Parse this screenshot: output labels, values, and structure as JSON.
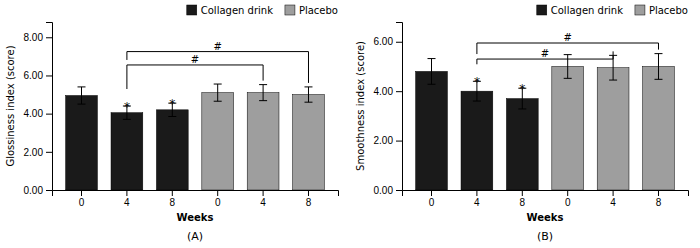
{
  "chart_data": [
    {
      "type": "bar",
      "title": "(A)",
      "x_label": "Weeks",
      "y_label": "Glossiness index (score)",
      "categories": [
        "0",
        "4",
        "8",
        "0",
        "4",
        "8"
      ],
      "series": [
        {
          "name": "Collagen drink",
          "color": "#1a1a1a",
          "values": [
            4.95,
            4.05,
            4.2,
            null,
            null,
            null
          ],
          "errors": [
            0.45,
            0.35,
            0.35,
            null,
            null,
            null
          ]
        },
        {
          "name": "Placebo",
          "color": "#9e9e9e",
          "values": [
            null,
            null,
            null,
            5.1,
            5.1,
            5.0
          ],
          "errors": [
            null,
            null,
            null,
            0.45,
            0.42,
            0.4
          ]
        }
      ],
      "annotations": [
        {
          "text": "*",
          "series": 0,
          "index": 1
        },
        {
          "text": "*",
          "series": 0,
          "index": 2
        }
      ],
      "brackets": [
        {
          "text": "#",
          "from": 1,
          "to": 4,
          "y": 6.55
        },
        {
          "text": "#",
          "from": 1,
          "to": 5,
          "y": 7.25
        }
      ],
      "ylim": [
        0,
        8.8
      ],
      "yticks": [
        {
          "value": 0.0,
          "label": "0.00"
        },
        {
          "value": 2.0,
          "label": "2.00"
        },
        {
          "value": 4.0,
          "label": "4.00"
        },
        {
          "value": 6.0,
          "label": "6.00"
        },
        {
          "value": 8.0,
          "label": "8.00"
        }
      ],
      "legend": "upper right",
      "grid": false
    },
    {
      "type": "bar",
      "title": "(B)",
      "x_label": "Weeks",
      "y_label": "Smoothness index (score)",
      "categories": [
        "0",
        "4",
        "8",
        "0",
        "4",
        "8"
      ],
      "series": [
        {
          "name": "Collagen drink",
          "color": "#1a1a1a",
          "values": [
            4.8,
            4.0,
            3.7,
            null,
            null,
            null
          ],
          "errors": [
            0.52,
            0.4,
            0.42,
            null,
            null,
            null
          ]
        },
        {
          "name": "Placebo",
          "color": "#9e9e9e",
          "values": [
            null,
            null,
            null,
            5.0,
            4.95,
            5.0
          ],
          "errors": [
            null,
            null,
            null,
            0.48,
            0.5,
            0.52
          ]
        }
      ],
      "annotations": [
        {
          "text": "*",
          "series": 0,
          "index": 1
        },
        {
          "text": "*",
          "series": 0,
          "index": 2
        }
      ],
      "brackets": [
        {
          "text": "#",
          "from": 1,
          "to": 4,
          "y": 5.3
        },
        {
          "text": "#",
          "from": 1,
          "to": 5,
          "y": 5.95
        }
      ],
      "ylim": [
        0,
        6.8
      ],
      "yticks": [
        {
          "value": 0.0,
          "label": "0.00"
        },
        {
          "value": 2.0,
          "label": "2.00"
        },
        {
          "value": 4.0,
          "label": "4.00"
        },
        {
          "value": 6.0,
          "label": "6.00"
        }
      ],
      "legend": "upper right",
      "grid": false
    }
  ]
}
